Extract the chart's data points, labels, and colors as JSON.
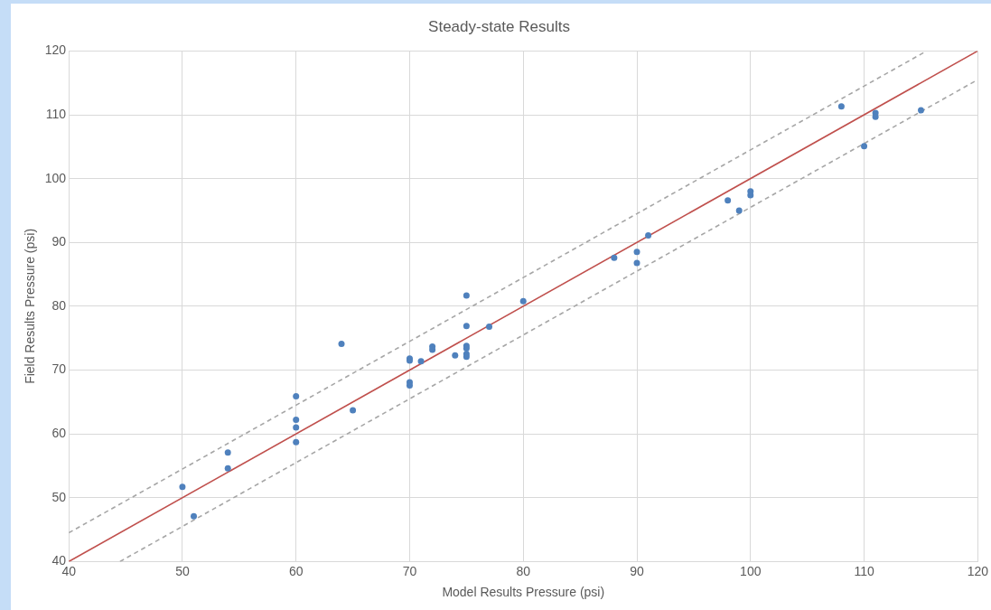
{
  "chart_data": {
    "type": "scatter",
    "title": "Steady-state Results",
    "xlabel": "Model Results Pressure (psi)",
    "ylabel": "Field Results Pressure (psi)",
    "xlim": [
      40,
      120
    ],
    "xticks": [
      40,
      50,
      60,
      70,
      80,
      90,
      100,
      110,
      120
    ],
    "ylim": [
      40,
      120
    ],
    "yticks": [
      40,
      50,
      60,
      70,
      80,
      90,
      100,
      110,
      120
    ],
    "grid": true,
    "legend": false,
    "marker": "circle",
    "series": [
      {
        "type": "scatter",
        "color": "#4f81bd",
        "x": [
          50,
          51,
          54,
          54,
          60,
          60,
          60,
          60,
          64,
          65,
          70,
          70,
          70,
          70,
          71,
          72,
          72,
          74,
          75,
          75,
          75,
          75,
          75,
          75,
          77,
          80,
          88,
          90,
          90,
          91,
          98,
          99,
          100,
          100,
          108,
          110,
          111,
          111,
          115
        ],
        "values": [
          51.7,
          47.1,
          57.1,
          54.6,
          65.9,
          62.2,
          61.0,
          58.7,
          74.1,
          63.7,
          71.8,
          71.5,
          68.1,
          67.6,
          71.4,
          73.7,
          73.2,
          72.3,
          81.7,
          76.9,
          73.8,
          73.4,
          72.5,
          72.1,
          76.8,
          80.8,
          87.6,
          88.5,
          86.8,
          91.1,
          96.6,
          95.0,
          98.0,
          97.4,
          111.3,
          105.1,
          110.3,
          109.7,
          110.7
        ]
      },
      {
        "type": "line",
        "color": "#c0504d",
        "line_style": "solid",
        "marker": "none",
        "x": [
          40,
          120
        ],
        "values": [
          40,
          120
        ]
      },
      {
        "type": "line",
        "color": "#a6a6a6",
        "line_style": "dashed",
        "marker": "none",
        "x": [
          40,
          115.5
        ],
        "values": [
          44.5,
          120
        ]
      },
      {
        "type": "line",
        "color": "#a6a6a6",
        "line_style": "dashed",
        "marker": "none",
        "x": [
          44.5,
          120
        ],
        "values": [
          40,
          115.5
        ]
      }
    ]
  }
}
